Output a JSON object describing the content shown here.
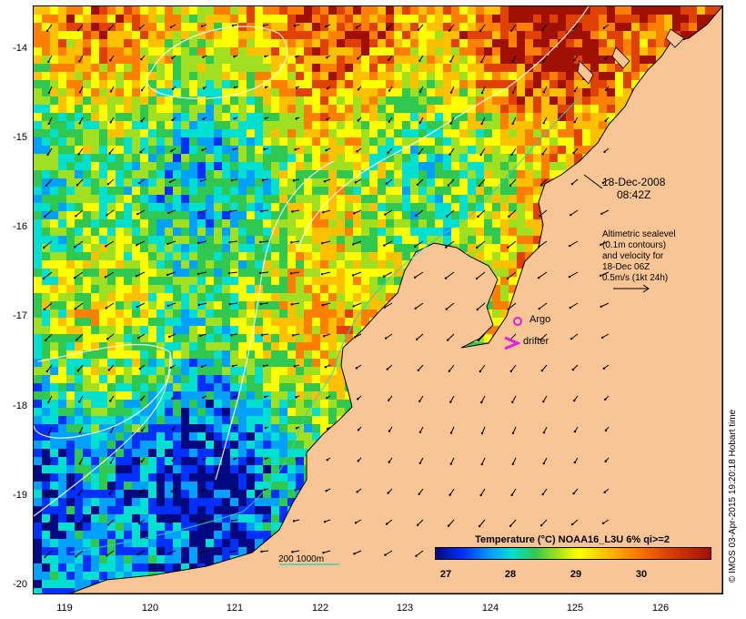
{
  "map": {
    "y_ticks": [
      "-14",
      "-15",
      "-16",
      "-17",
      "-18",
      "-19",
      "-20"
    ],
    "x_ticks": [
      "119",
      "120",
      "121",
      "122",
      "123",
      "124",
      "125",
      "126"
    ],
    "lat_range": [
      -20.1,
      -13.5
    ],
    "lon_range": [
      118.65,
      126.7
    ],
    "land_color": "#f9c594",
    "sea_palette": [
      "#000a80",
      "#0030ff",
      "#00a0ff",
      "#00e0d0",
      "#30c850",
      "#a0e020",
      "#ffff00",
      "#ffc000",
      "#ff8000",
      "#e04000",
      "#a01000"
    ]
  },
  "annotations": {
    "timestamp_line1": "18-Dec-2008",
    "timestamp_line2": "08:42Z",
    "alt_lines": [
      "Altimetric sealevel",
      "(0.1m contours)",
      "and velocity for",
      "18-Dec 06Z",
      "0.5m/s (1kt 24h)"
    ],
    "argo_label": "Argo",
    "drifter_label": "drifter",
    "depth_label": "200  1000m"
  },
  "colorbar": {
    "title": "Temperature (°C) NOAA16_L3U 6% qi>=2",
    "ticks": [
      "27",
      "28",
      "29",
      "30"
    ]
  },
  "credit": "© IMOS 03-Apr-2015 19:20:18 Hobart time"
}
